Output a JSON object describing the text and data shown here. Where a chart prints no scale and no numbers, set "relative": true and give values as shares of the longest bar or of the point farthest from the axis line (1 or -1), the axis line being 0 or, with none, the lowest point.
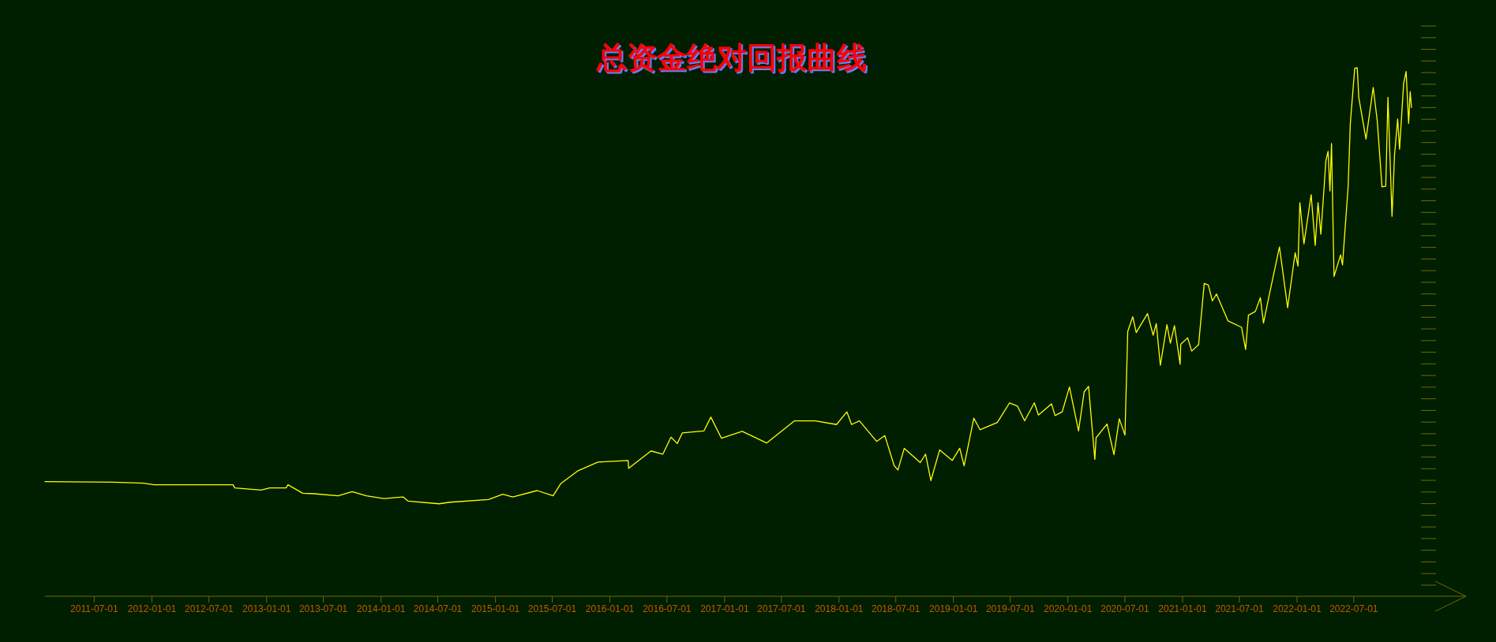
{
  "chart_data": {
    "type": "line",
    "title": "总资金绝对回报曲线",
    "relative": true,
    "xlim": [
      "2011-01-25",
      "2023-06-24"
    ],
    "xticks": [
      "2011-07-01",
      "2012-01-01",
      "2012-07-01",
      "2013-01-01",
      "2013-07-01",
      "2014-01-01",
      "2014-07-01",
      "2015-01-01",
      "2015-07-01",
      "2016-01-01",
      "2016-07-01",
      "2017-01-01",
      "2017-07-01",
      "2018-01-01",
      "2018-07-01",
      "2019-01-01",
      "2019-07-01",
      "2020-01-01",
      "2020-07-01",
      "2021-01-01",
      "2021-07-01",
      "2022-01-01",
      "2022-07-01"
    ],
    "x": [
      "2011-01-25",
      "2011-09-01",
      "2011-12-05",
      "2012-01-07",
      "2012-09-16",
      "2012-09-21",
      "2012-12-14",
      "2013-01-11",
      "2013-03-04",
      "2013-03-10",
      "2013-04-26",
      "2013-06-01",
      "2013-08-17",
      "2013-10-01",
      "2013-11-15",
      "2014-01-10",
      "2014-03-12",
      "2014-03-29",
      "2014-07-05",
      "2014-08-09",
      "2014-12-10",
      "2015-01-24",
      "2015-02-25",
      "2015-05-14",
      "2015-07-04",
      "2015-07-28",
      "2015-09-20",
      "2015-11-24",
      "2016-02-28",
      "2016-03-01",
      "2016-05-11",
      "2016-06-18",
      "2016-07-14",
      "2016-08-03",
      "2016-08-19",
      "2016-10-27",
      "2016-11-18",
      "2016-12-22",
      "2017-02-26",
      "2017-05-15",
      "2017-08-12",
      "2017-10-17",
      "2017-12-24",
      "2018-01-26",
      "2018-02-10",
      "2018-03-07",
      "2018-05-01",
      "2018-05-27",
      "2018-06-26",
      "2018-07-08",
      "2018-07-28",
      "2018-09-17",
      "2018-10-04",
      "2018-10-21",
      "2018-11-18",
      "2018-12-28",
      "2019-01-21",
      "2019-02-04",
      "2019-03-07",
      "2019-03-27",
      "2019-05-21",
      "2019-06-29",
      "2019-07-24",
      "2019-08-16",
      "2019-09-16",
      "2019-09-29",
      "2019-11-10",
      "2019-11-21",
      "2019-12-14",
      "2020-01-06",
      "2020-02-04",
      "2020-02-22",
      "2020-03-07",
      "2020-03-27",
      "2020-03-31",
      "2020-05-05",
      "2020-05-27",
      "2020-06-13",
      "2020-07-01",
      "2020-07-10",
      "2020-07-26",
      "2020-08-06",
      "2020-09-11",
      "2020-09-29",
      "2020-10-09",
      "2020-10-22",
      "2020-11-12",
      "2020-11-23",
      "2020-12-06",
      "2020-12-24",
      "2020-12-26",
      "2021-01-17",
      "2021-01-30",
      "2021-02-21",
      "2021-03-11",
      "2021-03-24",
      "2021-04-06",
      "2021-04-19",
      "2021-05-26",
      "2021-07-08",
      "2021-07-21",
      "2021-07-30",
      "2021-08-21",
      "2021-09-06",
      "2021-09-16",
      "2021-10-05",
      "2021-11-06",
      "2021-12-02",
      "2021-12-26",
      "2022-01-04",
      "2022-01-10",
      "2022-01-23",
      "2022-02-15",
      "2022-02-28",
      "2022-03-09",
      "2022-03-18",
      "2022-04-03",
      "2022-04-10",
      "2022-04-16",
      "2022-04-21",
      "2022-04-29",
      "2022-05-20",
      "2022-05-26",
      "2022-06-13",
      "2022-06-20",
      "2022-07-04",
      "2022-07-12",
      "2022-07-17",
      "2022-07-28",
      "2022-08-09",
      "2022-09-01",
      "2022-09-14",
      "2022-09-29",
      "2022-10-11",
      "2022-10-18",
      "2022-10-31",
      "2022-11-08",
      "2022-11-18",
      "2022-11-24",
      "2022-12-07",
      "2022-12-15",
      "2022-12-23",
      "2022-12-28",
      "2023-01-01"
    ],
    "series": [
      {
        "color": "#ffff00",
        "values": [
          0.217,
          0.216,
          0.214,
          0.211,
          0.211,
          0.205,
          0.201,
          0.205,
          0.205,
          0.211,
          0.195,
          0.194,
          0.19,
          0.198,
          0.19,
          0.185,
          0.188,
          0.18,
          0.175,
          0.178,
          0.183,
          0.193,
          0.188,
          0.2,
          0.19,
          0.213,
          0.237,
          0.254,
          0.257,
          0.242,
          0.275,
          0.269,
          0.301,
          0.289,
          0.309,
          0.313,
          0.339,
          0.299,
          0.312,
          0.29,
          0.332,
          0.332,
          0.325,
          0.349,
          0.325,
          0.332,
          0.293,
          0.304,
          0.247,
          0.239,
          0.28,
          0.253,
          0.269,
          0.219,
          0.277,
          0.257,
          0.28,
          0.247,
          0.337,
          0.315,
          0.329,
          0.366,
          0.36,
          0.332,
          0.366,
          0.343,
          0.364,
          0.342,
          0.349,
          0.396,
          0.313,
          0.387,
          0.397,
          0.259,
          0.3,
          0.326,
          0.268,
          0.336,
          0.305,
          0.501,
          0.529,
          0.499,
          0.535,
          0.494,
          0.516,
          0.437,
          0.514,
          0.479,
          0.512,
          0.439,
          0.477,
          0.489,
          0.464,
          0.476,
          0.592,
          0.589,
          0.559,
          0.572,
          0.521,
          0.509,
          0.467,
          0.532,
          0.539,
          0.565,
          0.517,
          0.572,
          0.661,
          0.546,
          0.65,
          0.625,
          0.745,
          0.667,
          0.76,
          0.664,
          0.745,
          0.685,
          0.824,
          0.842,
          0.767,
          0.857,
          0.605,
          0.646,
          0.627,
          0.775,
          0.895,
          0.999,
          1.0,
          0.944,
          0.906,
          0.865,
          0.963,
          0.899,
          0.775,
          0.776,
          0.944,
          0.719,
          0.835,
          0.903,
          0.846,
          0.97,
          0.993,
          0.895,
          0.955,
          0.925
        ]
      }
    ]
  }
}
